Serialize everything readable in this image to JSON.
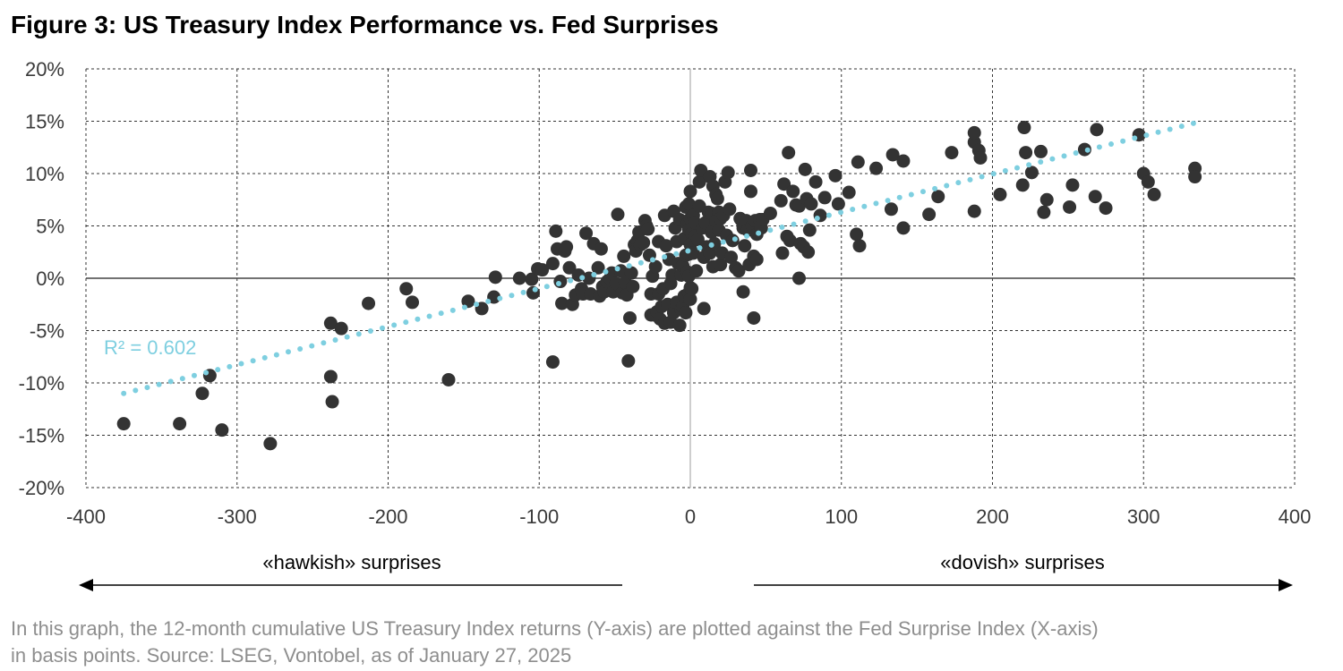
{
  "title": "Figure 3: US Treasury Index Performance vs. Fed Surprises",
  "caption": {
    "line1": "In this graph, the 12-month cumulative US Treasury Index returns (Y-axis) are plotted against the Fed Surprise Index (X-axis)",
    "line2": "in basis points. Source: LSEG, Vontobel, as of January 27, 2025"
  },
  "annotations": {
    "r2": "R² = 0.602",
    "hawkish": "«hawkish» surprises",
    "dovish": "«dovish» surprises"
  },
  "colors": {
    "points": "#333333",
    "trendline": "#7ecfe0",
    "r2_text": "#7ecfe0",
    "grid": "#333333",
    "caption": "#8e8e8e"
  },
  "chart_data": {
    "type": "scatter",
    "x_ticks": [
      "-400",
      "-300",
      "-200",
      "-100",
      "0",
      "100",
      "200",
      "300",
      "400"
    ],
    "y_ticks": [
      "20%",
      "15%",
      "10%",
      "5%",
      "0%",
      "-5%",
      "-10%",
      "-15%",
      "-20%"
    ],
    "xlim": [
      -400,
      400
    ],
    "ylim": [
      -20,
      20
    ],
    "grid": true,
    "trendline": {
      "x0": -375,
      "y0": -11.0,
      "x1": 333,
      "y1": 14.8,
      "r2": 0.602
    },
    "points": [
      [
        -375,
        -13.9
      ],
      [
        -338,
        -13.9
      ],
      [
        -323,
        -11.0
      ],
      [
        -318,
        -9.3
      ],
      [
        -310,
        -14.5
      ],
      [
        -278,
        -15.8
      ],
      [
        -238,
        -4.3
      ],
      [
        -238,
        -9.4
      ],
      [
        -237,
        -11.8
      ],
      [
        -231,
        -4.8
      ],
      [
        -213,
        -2.4
      ],
      [
        -188,
        -1.0
      ],
      [
        -184,
        -2.3
      ],
      [
        -160,
        -9.7
      ],
      [
        -147,
        -2.2
      ],
      [
        -138,
        -2.9
      ],
      [
        -130,
        -1.8
      ],
      [
        -129,
        0.1
      ],
      [
        -113,
        0.0
      ],
      [
        -105,
        -0.1
      ],
      [
        -104,
        -1.4
      ],
      [
        -101,
        0.9
      ],
      [
        -98,
        0.8
      ],
      [
        -91,
        1.4
      ],
      [
        -91,
        -8.0
      ],
      [
        -89,
        4.5
      ],
      [
        -88,
        2.8
      ],
      [
        -86,
        -0.3
      ],
      [
        -85,
        -2.4
      ],
      [
        -83,
        2.6
      ],
      [
        -82,
        3.0
      ],
      [
        -80,
        1.0
      ],
      [
        -78,
        -2.5
      ],
      [
        -76,
        -1.6
      ],
      [
        -74,
        0.3
      ],
      [
        -72,
        -1.0
      ],
      [
        -71,
        -1.5
      ],
      [
        -69,
        4.3
      ],
      [
        -67,
        0.0
      ],
      [
        -66,
        -1.5
      ],
      [
        -64,
        3.3
      ],
      [
        -61,
        1.0
      ],
      [
        -60,
        -1.7
      ],
      [
        -59,
        2.8
      ],
      [
        -58,
        -0.8
      ],
      [
        -57,
        -1.3
      ],
      [
        -55,
        -0.3
      ],
      [
        -53,
        0.0
      ],
      [
        -52,
        0.5
      ],
      [
        -51,
        -1.3
      ],
      [
        -49,
        -0.5
      ],
      [
        -48,
        6.1
      ],
      [
        -46,
        0.7
      ],
      [
        -45,
        -1.4
      ],
      [
        -44,
        2.1
      ],
      [
        -43,
        -0.4
      ],
      [
        -42,
        -1.6
      ],
      [
        -41,
        -7.9
      ],
      [
        -40,
        -3.8
      ],
      [
        -39,
        0.5
      ],
      [
        -38,
        -0.8
      ],
      [
        -37,
        3.2
      ],
      [
        -36,
        2.6
      ],
      [
        -35,
        3.6
      ],
      [
        -34,
        4.4
      ],
      [
        -33,
        3.2
      ],
      [
        -31,
        3.4
      ],
      [
        -30,
        5.5
      ],
      [
        -29,
        5.0
      ],
      [
        -28,
        4.7
      ],
      [
        -27,
        2.2
      ],
      [
        -26,
        -3.5
      ],
      [
        -26,
        -1.5
      ],
      [
        -25,
        0.2
      ],
      [
        -24,
        -3.5
      ],
      [
        -23,
        1.1
      ],
      [
        -22,
        -3.2
      ],
      [
        -21,
        3.5
      ],
      [
        -21,
        -1.5
      ],
      [
        -20,
        -3.9
      ],
      [
        -19,
        -2.7
      ],
      [
        -18,
        -1.0
      ],
      [
        -17,
        -4.3
      ],
      [
        -17,
        6.0
      ],
      [
        -16,
        3.1
      ],
      [
        -15,
        -2.5
      ],
      [
        -14,
        1.8
      ],
      [
        -13,
        -4.2
      ],
      [
        -13,
        -0.5
      ],
      [
        -12,
        0.3
      ],
      [
        -11,
        -3.3
      ],
      [
        -11,
        6.4
      ],
      [
        -10,
        4.8
      ],
      [
        -9,
        3.5
      ],
      [
        -9,
        -2.3
      ],
      [
        -8,
        1.4
      ],
      [
        -7,
        -4.5
      ],
      [
        -7,
        5.6
      ],
      [
        -6,
        -3.0
      ],
      [
        -6,
        0.3
      ],
      [
        -5,
        1.2
      ],
      [
        -5,
        -2.7
      ],
      [
        -4,
        3.8
      ],
      [
        -4,
        -1.7
      ],
      [
        -3,
        2.2
      ],
      [
        -3,
        -3.3
      ],
      [
        -3,
        6.8
      ],
      [
        -2,
        5.2
      ],
      [
        -2,
        0.6
      ],
      [
        -1,
        -1.4
      ],
      [
        -1,
        4.6
      ],
      [
        0,
        -0.9
      ],
      [
        0,
        3.2
      ],
      [
        -1,
        7.1
      ],
      [
        -1,
        2.3
      ],
      [
        0,
        5.7
      ],
      [
        -1,
        0.2
      ],
      [
        0,
        -2.0
      ],
      [
        0,
        8.3
      ],
      [
        1,
        4.3
      ],
      [
        1,
        -1.0
      ],
      [
        2,
        6.0
      ],
      [
        2,
        2.4
      ],
      [
        3,
        4.0
      ],
      [
        3,
        5.3
      ],
      [
        4,
        0.7
      ],
      [
        5,
        3.7
      ],
      [
        6,
        6.9
      ],
      [
        6,
        9.2
      ],
      [
        7,
        10.3
      ],
      [
        8,
        4.8
      ],
      [
        9,
        2.0
      ],
      [
        9,
        -2.9
      ],
      [
        10,
        5.3
      ],
      [
        11,
        3.0
      ],
      [
        12,
        6.3
      ],
      [
        13,
        2.4
      ],
      [
        13,
        9.7
      ],
      [
        14,
        4.4
      ],
      [
        14,
        6.2
      ],
      [
        15,
        1.1
      ],
      [
        15,
        8.8
      ],
      [
        16,
        3.3
      ],
      [
        17,
        5.5
      ],
      [
        17,
        8.0
      ],
      [
        18,
        7.6
      ],
      [
        19,
        6.3
      ],
      [
        19,
        4.6
      ],
      [
        20,
        5.7
      ],
      [
        20,
        1.3
      ],
      [
        21,
        2.4
      ],
      [
        22,
        6.0
      ],
      [
        23,
        9.2
      ],
      [
        24,
        4.1
      ],
      [
        25,
        10.1
      ],
      [
        26,
        6.6
      ],
      [
        27,
        2.0
      ],
      [
        28,
        3.6
      ],
      [
        30,
        1.0
      ],
      [
        32,
        0.7
      ],
      [
        33,
        5.7
      ],
      [
        34,
        5.5
      ],
      [
        35,
        -1.3
      ],
      [
        35,
        4.8
      ],
      [
        36,
        3.1
      ],
      [
        37,
        5.5
      ],
      [
        38,
        4.6
      ],
      [
        39,
        1.3
      ],
      [
        40,
        8.3
      ],
      [
        40,
        10.3
      ],
      [
        41,
        5.0
      ],
      [
        42,
        2.1
      ],
      [
        42,
        -3.8
      ],
      [
        43,
        5.5
      ],
      [
        44,
        4.2
      ],
      [
        44,
        1.8
      ],
      [
        46,
        5.6
      ],
      [
        47,
        4.8
      ],
      [
        48,
        5.6
      ],
      [
        53,
        6.2
      ],
      [
        60,
        7.4
      ],
      [
        61,
        2.4
      ],
      [
        62,
        9.0
      ],
      [
        64,
        4.0
      ],
      [
        65,
        12.0
      ],
      [
        66,
        3.6
      ],
      [
        68,
        8.3
      ],
      [
        70,
        7.0
      ],
      [
        72,
        0.0
      ],
      [
        72,
        6.9
      ],
      [
        73,
        3.3
      ],
      [
        75,
        3.0
      ],
      [
        76,
        10.4
      ],
      [
        77,
        7.6
      ],
      [
        78,
        2.5
      ],
      [
        79,
        4.6
      ],
      [
        80,
        7.1
      ],
      [
        83,
        9.2
      ],
      [
        86,
        6.0
      ],
      [
        89,
        7.7
      ],
      [
        96,
        9.8
      ],
      [
        98,
        7.1
      ],
      [
        105,
        8.2
      ],
      [
        110,
        4.2
      ],
      [
        111,
        11.1
      ],
      [
        112,
        3.1
      ],
      [
        123,
        10.5
      ],
      [
        133,
        6.6
      ],
      [
        134,
        11.8
      ],
      [
        141,
        4.8
      ],
      [
        141,
        11.2
      ],
      [
        158,
        6.1
      ],
      [
        164,
        7.8
      ],
      [
        173,
        12.0
      ],
      [
        188,
        6.4
      ],
      [
        188,
        13.0
      ],
      [
        188,
        13.9
      ],
      [
        191,
        12.2
      ],
      [
        192,
        11.5
      ],
      [
        205,
        8.0
      ],
      [
        220,
        8.9
      ],
      [
        221,
        14.4
      ],
      [
        222,
        12.0
      ],
      [
        226,
        10.1
      ],
      [
        232,
        12.1
      ],
      [
        234,
        6.3
      ],
      [
        236,
        7.5
      ],
      [
        251,
        6.8
      ],
      [
        253,
        8.9
      ],
      [
        261,
        12.3
      ],
      [
        268,
        7.8
      ],
      [
        269,
        14.2
      ],
      [
        275,
        6.7
      ],
      [
        297,
        13.7
      ],
      [
        300,
        10.0
      ],
      [
        303,
        9.2
      ],
      [
        307,
        8.0
      ],
      [
        334,
        10.5
      ],
      [
        334,
        9.7
      ]
    ]
  }
}
